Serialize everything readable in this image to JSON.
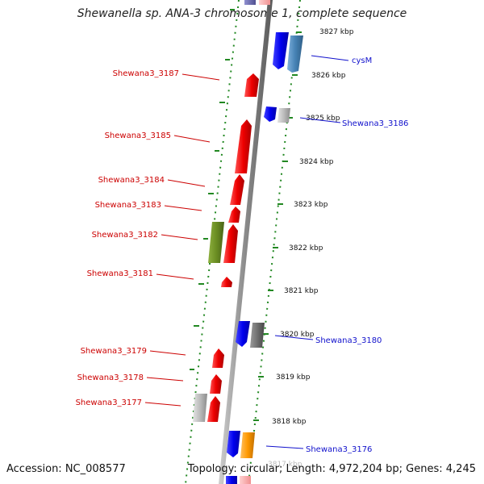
{
  "title": "Shewanella sp. ANA-3 chromosome 1, complete sequence",
  "accession": "Accession: NC_008577",
  "topology": "Topology: circular; Length: 4,972,204 bp; Genes: 4,245",
  "colors": {
    "forward_strand": "#ee1111",
    "reverse_strand": "#1111ee",
    "left_label": "#cc0000",
    "right_label": "#1111cc",
    "backbone": "#888888",
    "dotted_track": "#228822",
    "olive_feature": "#6b8e23",
    "steelblue_feature": "#4682b4",
    "grey_feature": "#bbbbbb",
    "darkgrey_feature": "#777777",
    "orange_feature": "#ff9900"
  },
  "ticks": [
    {
      "label": "3827 kbp"
    },
    {
      "label": "3826 kbp"
    },
    {
      "label": "3825 kbp"
    },
    {
      "label": "3824 kbp"
    },
    {
      "label": "3823 kbp"
    },
    {
      "label": "3822 kbp"
    },
    {
      "label": "3821 kbp"
    },
    {
      "label": "3820 kbp"
    },
    {
      "label": "3819 kbp"
    },
    {
      "label": "3818 kbp"
    },
    {
      "label": "3817 kbp"
    }
  ],
  "left_genes": [
    {
      "label": "Shewana3_3187"
    },
    {
      "label": "Shewana3_3185"
    },
    {
      "label": "Shewana3_3184"
    },
    {
      "label": "Shewana3_3183"
    },
    {
      "label": "Shewana3_3182"
    },
    {
      "label": "Shewana3_3181"
    },
    {
      "label": "Shewana3_3179"
    },
    {
      "label": "Shewana3_3178"
    },
    {
      "label": "Shewana3_3177"
    }
  ],
  "right_genes": [
    {
      "label": "cysM"
    },
    {
      "label": "Shewana3_3186"
    },
    {
      "label": "Shewana3_3180"
    },
    {
      "label": "Shewana3_3176"
    }
  ]
}
